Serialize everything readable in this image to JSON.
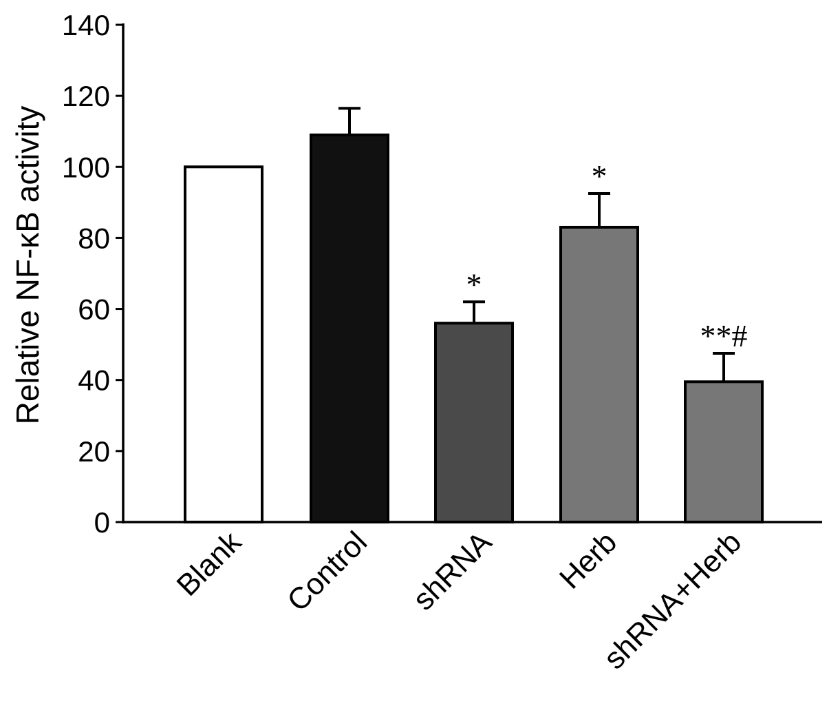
{
  "chart_data": {
    "type": "bar",
    "title": "",
    "xlabel": "",
    "ylabel": "Relative NF-κB activity",
    "ylim": [
      0,
      140
    ],
    "yticks": [
      0,
      20,
      40,
      60,
      80,
      100,
      120,
      140
    ],
    "grid": false,
    "categories": [
      "Blank",
      "Control",
      "shRNA",
      "Herb",
      "shRNA+Herb"
    ],
    "values": [
      100,
      109,
      56,
      83,
      39.5
    ],
    "errors": [
      0,
      7.5,
      6,
      9.5,
      8
    ],
    "annotations": [
      "",
      "",
      "*",
      "*",
      "**#"
    ],
    "colors": [
      "#ffffff",
      "#111111",
      "#4a4a4a",
      "#777777",
      "#777777"
    ]
  }
}
